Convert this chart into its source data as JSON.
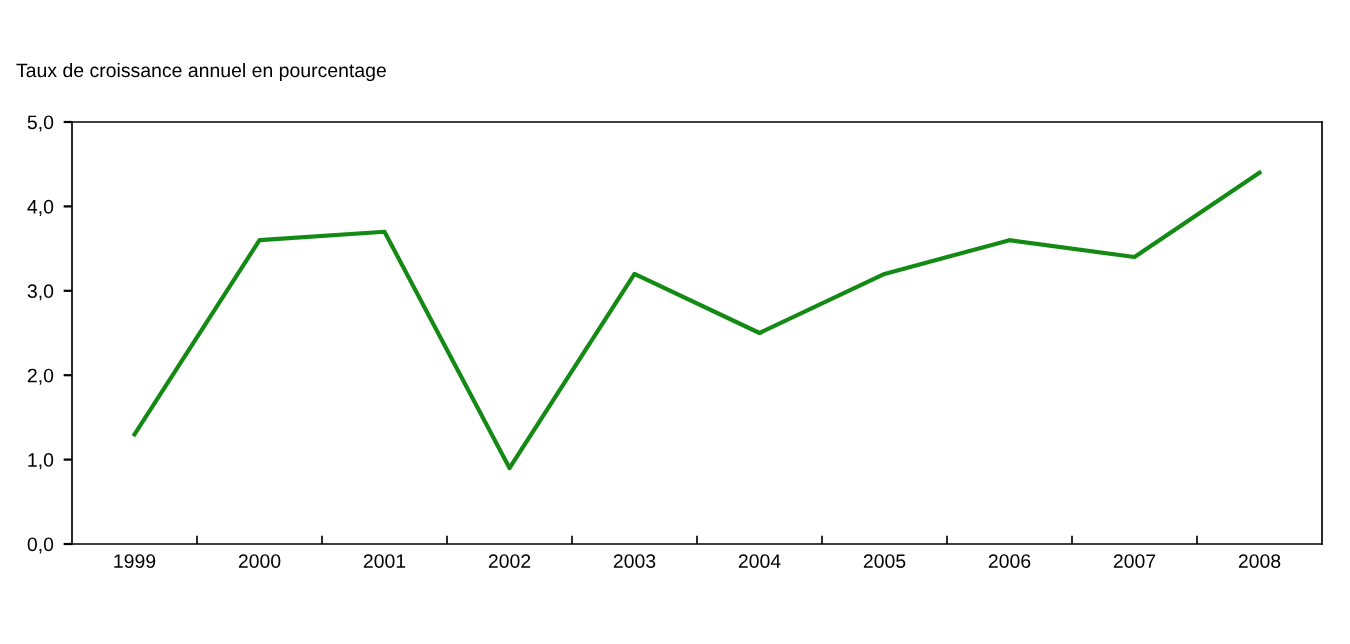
{
  "chart_data": {
    "type": "line",
    "ylabel": "Taux de croissance annuel en pourcentage",
    "categories": [
      "1999",
      "2000",
      "2001",
      "2002",
      "2003",
      "2004",
      "2005",
      "2006",
      "2007",
      "2008"
    ],
    "series": [
      {
        "color": "#138a13",
        "values": [
          1.3,
          3.6,
          3.7,
          0.9,
          3.2,
          2.5,
          3.2,
          3.6,
          3.4,
          4.4
        ]
      }
    ],
    "ylim": [
      0,
      5
    ],
    "yticks": [
      {
        "value": 0,
        "label": "0,0"
      },
      {
        "value": 1,
        "label": "1,0"
      },
      {
        "value": 2,
        "label": "2,0"
      },
      {
        "value": 3,
        "label": "3,0"
      },
      {
        "value": 4,
        "label": "4,0"
      },
      {
        "value": 5,
        "label": "5,0"
      }
    ],
    "grid": false,
    "legend": false,
    "marker": "none",
    "line_style": "solid"
  }
}
